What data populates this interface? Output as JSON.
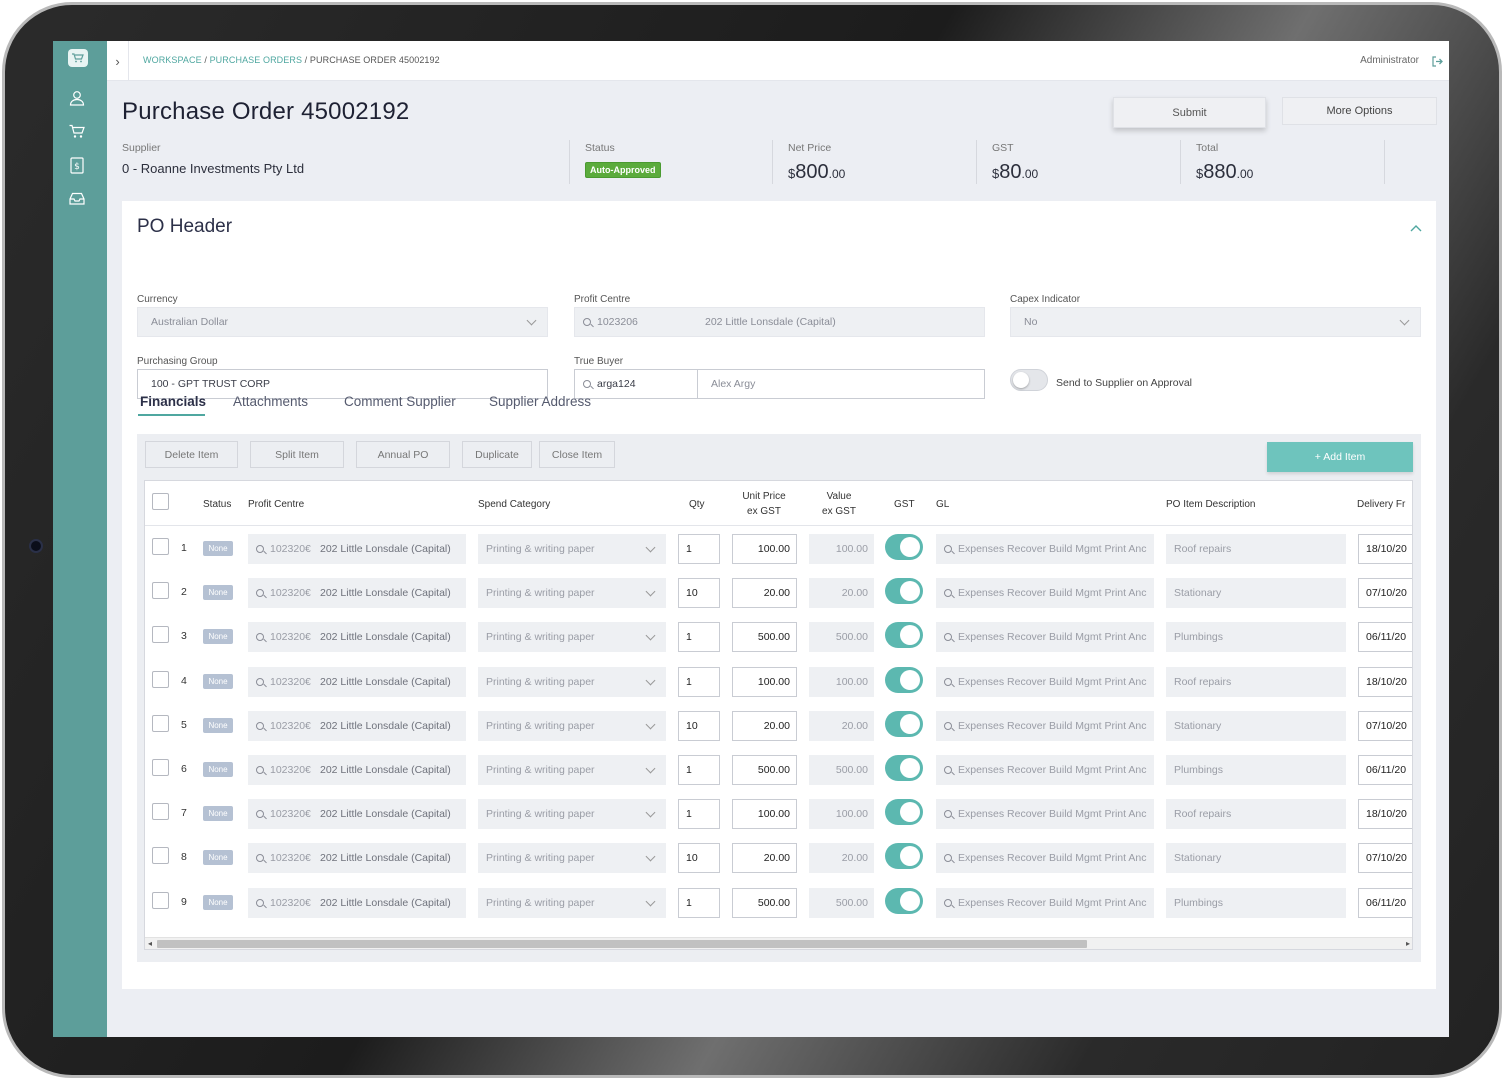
{
  "breadcrumb": {
    "workspace": "WORKSPACE",
    "sep1": " / ",
    "purchase_orders": "PURCHASE ORDERS",
    "sep2": " / ",
    "current": "PURCHASE ORDER 45002192"
  },
  "user": {
    "name": "Administrator"
  },
  "page": {
    "title": "Purchase Order 45002192"
  },
  "actions": {
    "submit": "Submit",
    "more_options": "More Options"
  },
  "summary": {
    "supplier_label": "Supplier",
    "supplier_value": "0 - Roanne Investments Pty Ltd",
    "status_label": "Status",
    "status_value": "Auto-Approved",
    "net_label": "Net Price",
    "gst_label": "GST",
    "total_label": "Total",
    "currency_symbol": "$",
    "net_whole": "800",
    "net_cents": ".00",
    "gst_whole": "80",
    "gst_cents": ".00",
    "total_whole": "880",
    "total_cents": ".00"
  },
  "header": {
    "title": "PO Header",
    "currency_label": "Currency",
    "currency_value": "Australian Dollar",
    "profit_centre_label": "Profit Centre",
    "profit_centre_code": "1023206",
    "profit_centre_name": "202 Little Lonsdale (Capital)",
    "capex_label": "Capex Indicator",
    "capex_value": "No",
    "purchasing_group_label": "Purchasing Group",
    "purchasing_group_value": "100 - GPT TRUST CORP",
    "true_buyer_label": "True Buyer",
    "true_buyer_id": "arga124",
    "true_buyer_name": "Alex Argy",
    "send_supplier_label": "Send to Supplier on Approval",
    "send_supplier_enabled": false
  },
  "tabs": [
    "Financials",
    "Attachments",
    "Comment Supplier",
    "Supplier Address"
  ],
  "item_actions": {
    "delete": "Delete Item",
    "split": "Split Item",
    "annual": "Annual PO",
    "duplicate": "Duplicate",
    "close": "Close Item",
    "add": "+ Add Item"
  },
  "table": {
    "columns": {
      "status": "Status",
      "profit_centre": "Profit Centre",
      "spend_category": "Spend Category",
      "qty": "Qty",
      "unit_price_1": "Unit Price",
      "unit_price_2": "ex GST",
      "value_1": "Value",
      "value_2": "ex GST",
      "gst": "GST",
      "gl": "GL",
      "description": "PO Item Description",
      "delivery": "Delivery Fr"
    },
    "rows": [
      {
        "num": "1",
        "status": "None",
        "pc_code": "102320€",
        "pc_name": "202 Little Lonsdale (Capital)",
        "spend": "Printing & writing paper",
        "qty": "1",
        "unit": "100.00",
        "value": "100.00",
        "gst": true,
        "gl": "Expenses Recover Build Mgmt Print Anc",
        "desc": "Roof repairs",
        "delivery": "18/10/20"
      },
      {
        "num": "2",
        "status": "None",
        "pc_code": "102320€",
        "pc_name": "202 Little Lonsdale (Capital)",
        "spend": "Printing & writing paper",
        "qty": "10",
        "unit": "20.00",
        "value": "20.00",
        "gst": true,
        "gl": "Expenses Recover Build Mgmt Print Anc",
        "desc": "Stationary",
        "delivery": "07/10/20"
      },
      {
        "num": "3",
        "status": "None",
        "pc_code": "102320€",
        "pc_name": "202 Little Lonsdale (Capital)",
        "spend": "Printing & writing paper",
        "qty": "1",
        "unit": "500.00",
        "value": "500.00",
        "gst": true,
        "gl": "Expenses Recover Build Mgmt Print Anc",
        "desc": "Plumbings",
        "delivery": "06/11/20"
      },
      {
        "num": "4",
        "status": "None",
        "pc_code": "102320€",
        "pc_name": "202 Little Lonsdale (Capital)",
        "spend": "Printing & writing paper",
        "qty": "1",
        "unit": "100.00",
        "value": "100.00",
        "gst": true,
        "gl": "Expenses Recover Build Mgmt Print Anc",
        "desc": "Roof repairs",
        "delivery": "18/10/20"
      },
      {
        "num": "5",
        "status": "None",
        "pc_code": "102320€",
        "pc_name": "202 Little Lonsdale (Capital)",
        "spend": "Printing & writing paper",
        "qty": "10",
        "unit": "20.00",
        "value": "20.00",
        "gst": true,
        "gl": "Expenses Recover Build Mgmt Print Anc",
        "desc": "Stationary",
        "delivery": "07/10/20"
      },
      {
        "num": "6",
        "status": "None",
        "pc_code": "102320€",
        "pc_name": "202 Little Lonsdale (Capital)",
        "spend": "Printing & writing paper",
        "qty": "1",
        "unit": "500.00",
        "value": "500.00",
        "gst": true,
        "gl": "Expenses Recover Build Mgmt Print Anc",
        "desc": "Plumbings",
        "delivery": "06/11/20"
      },
      {
        "num": "7",
        "status": "None",
        "pc_code": "102320€",
        "pc_name": "202 Little Lonsdale (Capital)",
        "spend": "Printing & writing paper",
        "qty": "1",
        "unit": "100.00",
        "value": "100.00",
        "gst": true,
        "gl": "Expenses Recover Build Mgmt Print Anc",
        "desc": "Roof repairs",
        "delivery": "18/10/20"
      },
      {
        "num": "8",
        "status": "None",
        "pc_code": "102320€",
        "pc_name": "202 Little Lonsdale (Capital)",
        "spend": "Printing & writing paper",
        "qty": "10",
        "unit": "20.00",
        "value": "20.00",
        "gst": true,
        "gl": "Expenses Recover Build Mgmt Print Anc",
        "desc": "Stationary",
        "delivery": "07/10/20"
      },
      {
        "num": "9",
        "status": "None",
        "pc_code": "102320€",
        "pc_name": "202 Little Lonsdale (Capital)",
        "spend": "Printing & writing paper",
        "qty": "1",
        "unit": "500.00",
        "value": "500.00",
        "gst": true,
        "gl": "Expenses Recover Build Mgmt Print Anc",
        "desc": "Plumbings",
        "delivery": "06/11/20"
      }
    ]
  },
  "colors": {
    "accent": "#5d9e9a",
    "teal_button": "#6ec4bd",
    "approved": "#5bab3c",
    "toggle_on": "#5cb8b0"
  }
}
